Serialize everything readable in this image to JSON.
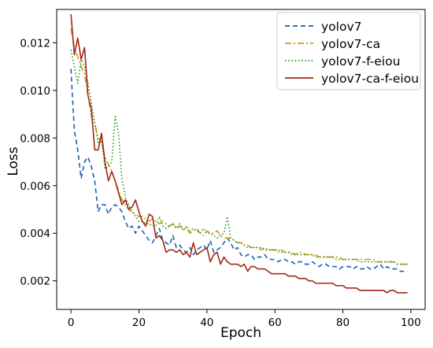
{
  "chart_data": {
    "type": "line",
    "title": "",
    "xlabel": "Epoch",
    "ylabel": "Loss",
    "xlim": [
      -4.2,
      104.2
    ],
    "ylim": [
      0.0008,
      0.0134
    ],
    "xticks": [
      0,
      20,
      40,
      60,
      80,
      100
    ],
    "xtick_labels": [
      "0",
      "20",
      "40",
      "60",
      "80",
      "100"
    ],
    "yticks": [
      0.002,
      0.004,
      0.006,
      0.008,
      0.01,
      0.012
    ],
    "ytick_labels": [
      "0.002",
      "0.004",
      "0.006",
      "0.008",
      "0.010",
      "0.012"
    ],
    "grid": false,
    "legend_position": "top-right",
    "x": [
      0,
      1,
      2,
      3,
      4,
      5,
      6,
      7,
      8,
      9,
      10,
      11,
      12,
      13,
      14,
      15,
      16,
      17,
      18,
      19,
      20,
      21,
      22,
      23,
      24,
      25,
      26,
      27,
      28,
      29,
      30,
      31,
      32,
      33,
      34,
      35,
      36,
      37,
      38,
      39,
      40,
      41,
      42,
      43,
      44,
      45,
      46,
      47,
      48,
      49,
      50,
      51,
      52,
      53,
      54,
      55,
      56,
      57,
      58,
      59,
      60,
      61,
      62,
      63,
      64,
      65,
      66,
      67,
      68,
      69,
      70,
      71,
      72,
      73,
      74,
      75,
      76,
      77,
      78,
      79,
      80,
      81,
      82,
      83,
      84,
      85,
      86,
      87,
      88,
      89,
      90,
      91,
      92,
      93,
      94,
      95,
      96,
      97,
      98,
      99
    ],
    "series": [
      {
        "name": "yolov7",
        "color": "#1f5fb4",
        "dash": "dashed",
        "values": [
          0.0109,
          0.0083,
          0.0075,
          0.0063,
          0.007,
          0.0072,
          0.0068,
          0.0062,
          0.0049,
          0.0052,
          0.0052,
          0.0048,
          0.0051,
          0.0052,
          0.0051,
          0.0049,
          0.0045,
          0.0042,
          0.0043,
          0.004,
          0.0043,
          0.0041,
          0.0039,
          0.0037,
          0.0036,
          0.0039,
          0.0042,
          0.0037,
          0.0036,
          0.0035,
          0.0039,
          0.0034,
          0.0035,
          0.0033,
          0.0032,
          0.0034,
          0.0031,
          0.0033,
          0.0034,
          0.0035,
          0.0033,
          0.0037,
          0.0032,
          0.0033,
          0.0034,
          0.0036,
          0.0038,
          0.0036,
          0.0033,
          0.0034,
          0.0031,
          0.003,
          0.0031,
          0.0031,
          0.0029,
          0.003,
          0.003,
          0.0031,
          0.0029,
          0.0029,
          0.0029,
          0.0028,
          0.0029,
          0.0029,
          0.0028,
          0.0028,
          0.0027,
          0.0028,
          0.0028,
          0.0027,
          0.0027,
          0.0028,
          0.0027,
          0.0026,
          0.0027,
          0.0027,
          0.0026,
          0.0026,
          0.0026,
          0.0025,
          0.0026,
          0.0026,
          0.0026,
          0.0025,
          0.0026,
          0.0025,
          0.0025,
          0.0026,
          0.0025,
          0.0025,
          0.0026,
          0.0027,
          0.0025,
          0.0026,
          0.0025,
          0.0025,
          0.0025,
          0.0024,
          0.0024,
          0.0024
        ]
      },
      {
        "name": "yolov7-ca",
        "color": "#d9960f",
        "dash": "dashdot",
        "values": [
          0.0126,
          0.0118,
          0.0114,
          0.011,
          0.0107,
          0.0098,
          0.0089,
          0.0086,
          0.008,
          0.0078,
          0.0072,
          0.0069,
          0.0066,
          0.0062,
          0.0058,
          0.0054,
          0.0052,
          0.005,
          0.0049,
          0.0048,
          0.0047,
          0.0047,
          0.0046,
          0.0045,
          0.0046,
          0.0045,
          0.0044,
          0.0045,
          0.0044,
          0.0043,
          0.0044,
          0.0042,
          0.0043,
          0.0042,
          0.0042,
          0.004,
          0.0041,
          0.0042,
          0.004,
          0.0039,
          0.0041,
          0.004,
          0.004,
          0.0041,
          0.0039,
          0.0038,
          0.0038,
          0.0038,
          0.0037,
          0.0036,
          0.0036,
          0.0035,
          0.0035,
          0.0034,
          0.0034,
          0.0034,
          0.0033,
          0.0034,
          0.0033,
          0.0033,
          0.0033,
          0.0032,
          0.0033,
          0.0032,
          0.0032,
          0.0032,
          0.0031,
          0.0032,
          0.0032,
          0.0031,
          0.0031,
          0.0031,
          0.0031,
          0.003,
          0.003,
          0.003,
          0.003,
          0.003,
          0.003,
          0.003,
          0.0029,
          0.0029,
          0.0029,
          0.0029,
          0.0029,
          0.0029,
          0.0029,
          0.0029,
          0.0029,
          0.0029,
          0.0028,
          0.0028,
          0.0028,
          0.0028,
          0.0028,
          0.0028,
          0.0027,
          0.0027,
          0.0027,
          0.0027
        ]
      },
      {
        "name": "yolov7-f-eiou",
        "color": "#2a9a2a",
        "dash": "dotted",
        "values": [
          0.0117,
          0.011,
          0.0103,
          0.0113,
          0.011,
          0.0103,
          0.0095,
          0.0086,
          0.0078,
          0.008,
          0.0067,
          0.0068,
          0.007,
          0.0089,
          0.0082,
          0.0063,
          0.0055,
          0.0052,
          0.0049,
          0.0047,
          0.0045,
          0.0045,
          0.0044,
          0.0044,
          0.0043,
          0.0043,
          0.0047,
          0.0043,
          0.0042,
          0.0043,
          0.0044,
          0.0042,
          0.0044,
          0.0041,
          0.0043,
          0.0041,
          0.0042,
          0.0041,
          0.004,
          0.0042,
          0.004,
          0.004,
          0.0039,
          0.0038,
          0.0039,
          0.004,
          0.0047,
          0.0038,
          0.0037,
          0.0036,
          0.0036,
          0.0035,
          0.0034,
          0.0034,
          0.0034,
          0.0034,
          0.0034,
          0.0033,
          0.0033,
          0.0033,
          0.0033,
          0.0033,
          0.0032,
          0.0032,
          0.0032,
          0.0031,
          0.0031,
          0.0031,
          0.0031,
          0.0031,
          0.0031,
          0.0031,
          0.003,
          0.003,
          0.003,
          0.003,
          0.003,
          0.003,
          0.0029,
          0.0029,
          0.0029,
          0.0029,
          0.0029,
          0.0029,
          0.0029,
          0.0028,
          0.0028,
          0.0028,
          0.0028,
          0.0028,
          0.0028,
          0.0028,
          0.0028,
          0.0028,
          0.0028,
          0.0028,
          0.0027,
          0.0027,
          0.0027,
          0.0027
        ]
      },
      {
        "name": "yolov7-ca-f-eiou",
        "color": "#a02a16",
        "dash": "solid",
        "values": [
          0.0132,
          0.0115,
          0.0122,
          0.0113,
          0.0118,
          0.0098,
          0.0092,
          0.0075,
          0.0075,
          0.0082,
          0.007,
          0.0062,
          0.0066,
          0.0062,
          0.0057,
          0.0052,
          0.0054,
          0.005,
          0.0051,
          0.0054,
          0.0049,
          0.0045,
          0.0043,
          0.0048,
          0.0047,
          0.0038,
          0.0039,
          0.0037,
          0.0032,
          0.0033,
          0.0033,
          0.0032,
          0.0033,
          0.0031,
          0.0032,
          0.003,
          0.0036,
          0.0031,
          0.0032,
          0.0033,
          0.0034,
          0.0028,
          0.0031,
          0.0032,
          0.0027,
          0.003,
          0.0028,
          0.0027,
          0.0027,
          0.0027,
          0.0026,
          0.0027,
          0.0024,
          0.0026,
          0.0026,
          0.0025,
          0.0025,
          0.0025,
          0.0024,
          0.0023,
          0.0023,
          0.0023,
          0.0023,
          0.0023,
          0.0022,
          0.0022,
          0.0022,
          0.0021,
          0.0021,
          0.0021,
          0.002,
          0.002,
          0.0019,
          0.0019,
          0.0019,
          0.0019,
          0.0019,
          0.0019,
          0.0018,
          0.0018,
          0.0018,
          0.0017,
          0.0017,
          0.0017,
          0.0017,
          0.0016,
          0.0016,
          0.0016,
          0.0016,
          0.0016,
          0.0016,
          0.0016,
          0.0016,
          0.0015,
          0.0016,
          0.0016,
          0.0015,
          0.0015,
          0.0015,
          0.0015
        ]
      }
    ]
  }
}
